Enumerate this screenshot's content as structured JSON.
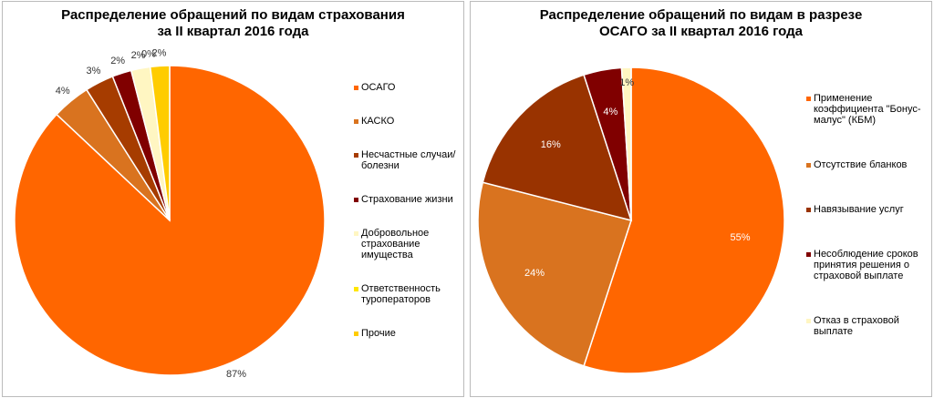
{
  "chart_data": [
    {
      "type": "pie",
      "title": "Распределение обращений по видам страхования\nза II квартал 2016 года",
      "categories": [
        "ОСАГО",
        "КАСКО",
        "Несчастные случаи/болезни",
        "Страхование жизни",
        "Добровольное страхование имущества",
        "Ответственность туроператоров",
        "Прочие"
      ],
      "values": [
        87,
        4,
        3,
        2,
        2,
        0,
        2
      ],
      "value_labels": [
        "87%",
        "4%",
        "3%",
        "2%",
        "2%",
        "0%",
        "2%"
      ],
      "colors": [
        "#ff6600",
        "#d9731f",
        "#a63c00",
        "#800000",
        "#fff6c2",
        "#ffe600",
        "#ffcc00"
      ],
      "labels_inside": false
    },
    {
      "type": "pie",
      "title": "Распределение обращений по видам в разрезе\nОСАГО за II квартал 2016 года",
      "categories": [
        "Применение коэффициента \"Бонус-малус\" (КБМ)",
        "Отсутствие бланков",
        "Навязывание услуг",
        "Несоблюдение сроков принятия решения о страховой выплате",
        "Отказ в страховой выплате"
      ],
      "values": [
        55,
        24,
        16,
        4,
        1
      ],
      "value_labels": [
        "55%",
        "24%",
        "16%",
        "4%",
        "1%"
      ],
      "colors": [
        "#ff6600",
        "#d9731f",
        "#993300",
        "#800000",
        "#fff6c2"
      ],
      "labels_inside": true
    }
  ]
}
